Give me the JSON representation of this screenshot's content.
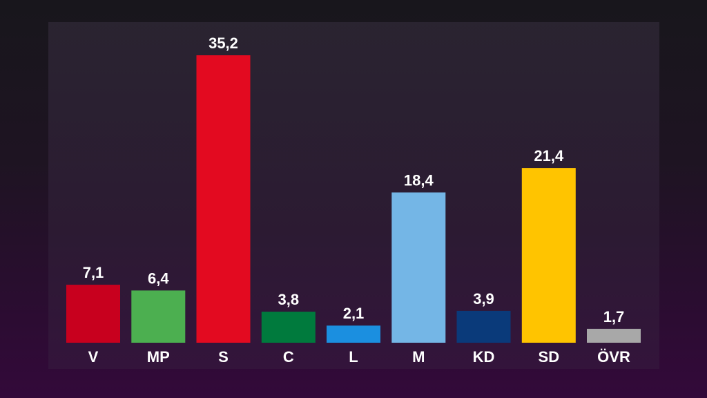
{
  "chart_data": {
    "type": "bar",
    "categories": [
      "V",
      "MP",
      "S",
      "C",
      "L",
      "M",
      "KD",
      "SD",
      "ÖVR"
    ],
    "values": [
      7.1,
      6.4,
      35.2,
      3.8,
      2.1,
      18.4,
      3.9,
      21.4,
      1.7
    ],
    "value_labels": [
      "7,1",
      "6,4",
      "35,2",
      "3,8",
      "2,1",
      "18,4",
      "3,9",
      "21,4",
      "1,7"
    ],
    "colors": [
      "#c8001e",
      "#4caf50",
      "#e30a20",
      "#007a3d",
      "#1b8fe0",
      "#74b6e6",
      "#0a3a7a",
      "#ffc400",
      "#a8a8a8"
    ],
    "ylim": [
      0,
      35.2
    ],
    "grid": false,
    "legend": "none"
  }
}
